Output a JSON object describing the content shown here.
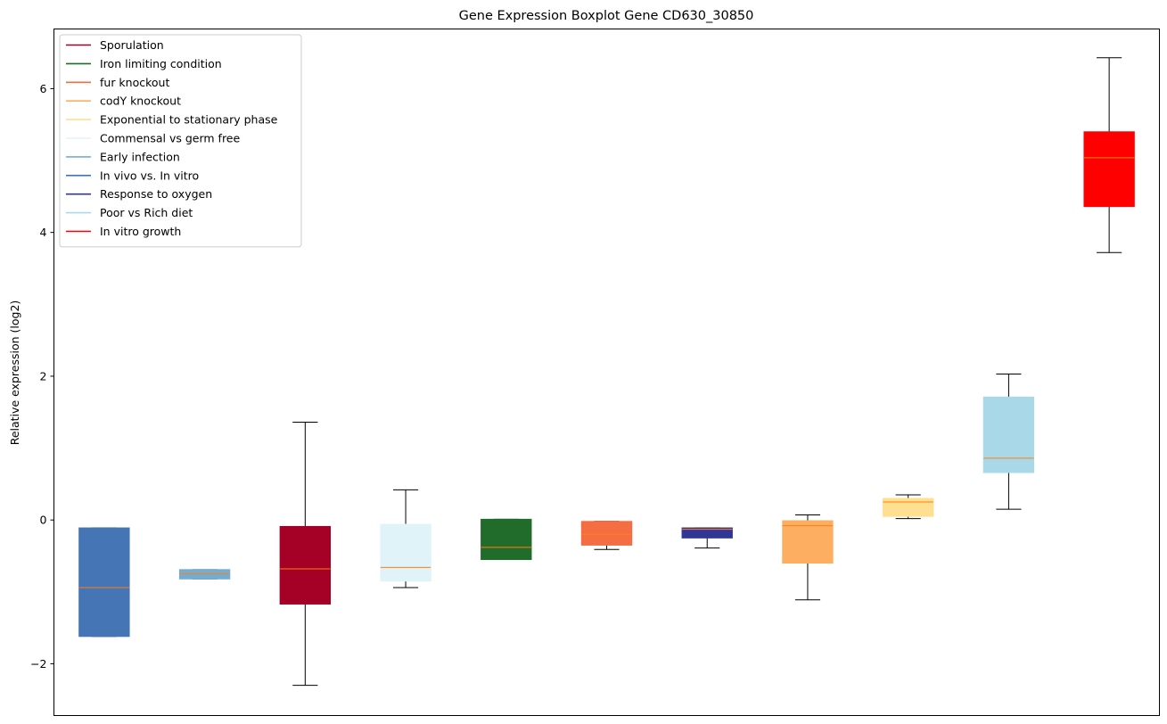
{
  "chart_data": {
    "type": "boxplot",
    "title": "Gene Expression Boxplot Gene CD630_30850",
    "xlabel": "",
    "ylabel": "Relative expression (log2)",
    "ylim": [
      -2.72,
      6.83
    ],
    "yticks": [
      -2,
      0,
      2,
      4,
      6
    ],
    "ytick_labels": [
      "−2",
      "0",
      "2",
      "4",
      "6"
    ],
    "grid": false,
    "legend_position": "top-left",
    "legend": [
      {
        "label": "Sporulation",
        "color": "#a50026"
      },
      {
        "label": "Iron limiting condition",
        "color": "#216b2b"
      },
      {
        "label": "fur knockout",
        "color": "#f46d43"
      },
      {
        "label": "codY knockout",
        "color": "#fdae61"
      },
      {
        "label": "Exponential to stationary phase",
        "color": "#fee090"
      },
      {
        "label": "Commensal vs germ free",
        "color": "#e0f3f8"
      },
      {
        "label": "Early infection",
        "color": "#74add1"
      },
      {
        "label": "In vivo vs. In vitro",
        "color": "#4575b4"
      },
      {
        "label": "Response to oxygen",
        "color": "#313695"
      },
      {
        "label": "Poor vs Rich diet",
        "color": "#abd9e9"
      },
      {
        "label": "In vitro growth",
        "color": "#ff0000"
      }
    ],
    "boxes": [
      {
        "group": "In vivo vs. In vitro",
        "color": "#4575b4",
        "whisker_low": -1.62,
        "q1": -1.62,
        "median": -0.94,
        "q3": -0.11,
        "whisker_high": -0.11
      },
      {
        "group": "Early infection",
        "color": "#74add1",
        "whisker_low": -0.82,
        "q1": -0.82,
        "median": -0.75,
        "q3": -0.69,
        "whisker_high": -0.69
      },
      {
        "group": "Sporulation",
        "color": "#a50026",
        "whisker_low": -2.3,
        "q1": -1.17,
        "median": -0.68,
        "q3": -0.09,
        "whisker_high": 1.36
      },
      {
        "group": "Commensal vs germ free",
        "color": "#e0f3f8",
        "whisker_low": -0.94,
        "q1": -0.85,
        "median": -0.66,
        "q3": -0.06,
        "whisker_high": 0.42
      },
      {
        "group": "Iron limiting condition",
        "color": "#216b2b",
        "whisker_low": -0.55,
        "q1": -0.55,
        "median": -0.38,
        "q3": 0.01,
        "whisker_high": 0.01
      },
      {
        "group": "fur knockout",
        "color": "#f46d43",
        "whisker_low": -0.41,
        "q1": -0.35,
        "median": -0.2,
        "q3": -0.02,
        "whisker_high": -0.02
      },
      {
        "group": "Response to oxygen",
        "color": "#313695",
        "whisker_low": -0.39,
        "q1": -0.25,
        "median": -0.13,
        "q3": -0.11,
        "whisker_high": -0.11
      },
      {
        "group": "codY knockout",
        "color": "#fdae61",
        "whisker_low": -1.11,
        "q1": -0.6,
        "median": -0.08,
        "q3": -0.01,
        "whisker_high": 0.07
      },
      {
        "group": "Exponential to stationary phase",
        "color": "#fee090",
        "whisker_low": 0.02,
        "q1": 0.05,
        "median": 0.25,
        "q3": 0.3,
        "whisker_high": 0.35
      },
      {
        "group": "Poor vs Rich diet",
        "color": "#a9d8e8",
        "whisker_low": 0.15,
        "q1": 0.66,
        "median": 0.86,
        "q3": 1.71,
        "whisker_high": 2.03
      },
      {
        "group": "In vitro growth",
        "color": "#ff0000",
        "whisker_low": 3.72,
        "q1": 4.36,
        "median": 5.04,
        "q3": 5.4,
        "whisker_high": 6.43
      }
    ],
    "median_color": "#ff7f0e",
    "whisker_color": "#000000"
  }
}
